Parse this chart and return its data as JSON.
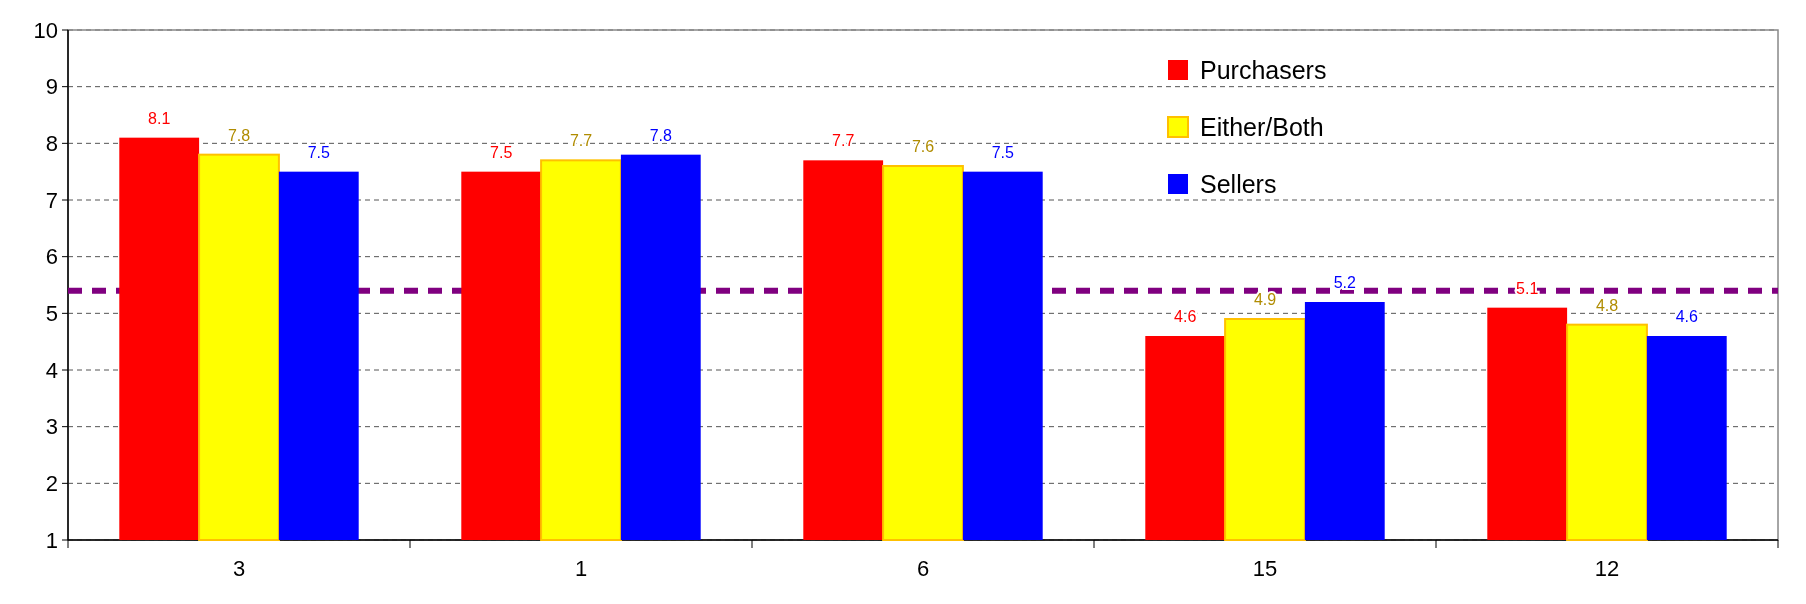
{
  "chart_data": {
    "type": "bar",
    "categories": [
      "3",
      "1",
      "6",
      "15",
      "12"
    ],
    "series": [
      {
        "name": "Purchasers",
        "color": "#ff0000",
        "values": [
          8.1,
          7.5,
          7.7,
          4.6,
          5.1
        ]
      },
      {
        "name": "Either/Both",
        "color": "#ffff00",
        "values": [
          7.8,
          7.7,
          7.6,
          4.9,
          4.8
        ]
      },
      {
        "name": "Sellers",
        "color": "#0000ff",
        "values": [
          7.5,
          7.8,
          7.5,
          5.2,
          4.6
        ]
      }
    ],
    "ylim": [
      1,
      10
    ],
    "yticks": [
      1,
      2,
      3,
      4,
      5,
      6,
      7,
      8,
      9,
      10
    ],
    "grid": "y",
    "legend": "top right",
    "data_labels": true,
    "ref_lines": [
      {
        "axis": "y",
        "value": 5.4,
        "color": "#800080",
        "line_style": "dashed"
      }
    ]
  }
}
